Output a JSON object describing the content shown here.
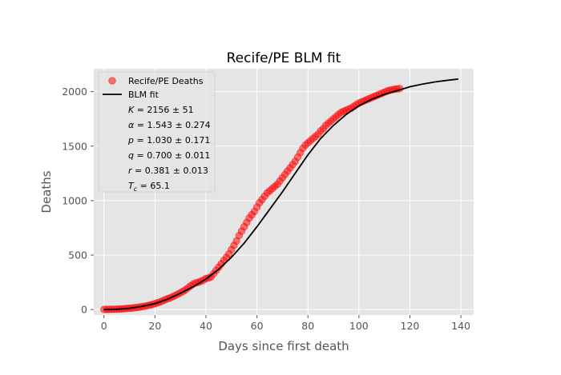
{
  "chart_data": {
    "type": "scatter",
    "title": "Recife/PE BLM fit",
    "xlabel": "Days since first death",
    "ylabel": "Deaths",
    "xlim": [
      -4,
      145
    ],
    "ylim": [
      -50,
      2210
    ],
    "xticks": [
      0,
      20,
      40,
      60,
      80,
      100,
      120,
      140
    ],
    "yticks": [
      0,
      500,
      1000,
      1500,
      2000
    ],
    "grid": true,
    "background": "#e5e5e5",
    "legend_position": "top-left",
    "series": [
      {
        "name": "Recife/PE Deaths",
        "kind": "scatter",
        "color": "#ff0000",
        "x_range": [
          0,
          116
        ],
        "note": "daily cumulative deaths, one point per day",
        "x": [
          0,
          1,
          2,
          3,
          4,
          5,
          6,
          7,
          8,
          9,
          10,
          11,
          12,
          13,
          14,
          15,
          16,
          17,
          18,
          19,
          20,
          21,
          22,
          23,
          24,
          25,
          26,
          27,
          28,
          29,
          30,
          31,
          32,
          33,
          34,
          35,
          36,
          37,
          38,
          39,
          40,
          41,
          42,
          43,
          44,
          45,
          46,
          47,
          48,
          49,
          50,
          51,
          52,
          53,
          54,
          55,
          56,
          57,
          58,
          59,
          60,
          61,
          62,
          63,
          64,
          65,
          66,
          67,
          68,
          69,
          70,
          71,
          72,
          73,
          74,
          75,
          76,
          77,
          78,
          79,
          80,
          81,
          82,
          83,
          84,
          85,
          86,
          87,
          88,
          89,
          90,
          91,
          92,
          93,
          94,
          95,
          96,
          97,
          98,
          99,
          100,
          101,
          102,
          103,
          104,
          105,
          106,
          107,
          108,
          109,
          110,
          111,
          112,
          113,
          114,
          115,
          116
        ],
        "y": [
          1,
          2,
          2,
          3,
          3,
          4,
          5,
          6,
          8,
          10,
          12,
          14,
          17,
          20,
          23,
          27,
          31,
          36,
          41,
          47,
          54,
          62,
          70,
          80,
          91,
          100,
          108,
          118,
          130,
          142,
          155,
          168,
          182,
          200,
          218,
          235,
          245,
          250,
          260,
          270,
          285,
          290,
          300,
          330,
          360,
          390,
          420,
          450,
          480,
          510,
          550,
          590,
          630,
          680,
          720,
          760,
          800,
          840,
          870,
          900,
          940,
          980,
          1010,
          1040,
          1070,
          1090,
          1110,
          1130,
          1150,
          1180,
          1210,
          1240,
          1270,
          1300,
          1330,
          1360,
          1400,
          1440,
          1480,
          1510,
          1530,
          1550,
          1570,
          1590,
          1610,
          1640,
          1660,
          1690,
          1710,
          1730,
          1750,
          1770,
          1790,
          1810,
          1820,
          1830,
          1840,
          1850,
          1865,
          1880,
          1895,
          1905,
          1915,
          1925,
          1935,
          1945,
          1955,
          1965,
          1975,
          1985,
          1995,
          2005,
          2012,
          2018,
          2022,
          2025,
          2028
        ]
      },
      {
        "name": "BLM fit",
        "kind": "line",
        "color": "#000000",
        "x_range": [
          0,
          139
        ],
        "x": [
          0,
          5,
          10,
          15,
          20,
          25,
          30,
          35,
          40,
          45,
          50,
          55,
          60,
          65,
          70,
          75,
          80,
          85,
          90,
          95,
          100,
          105,
          110,
          115,
          120,
          125,
          130,
          135,
          139
        ],
        "y": [
          0,
          3,
          12,
          30,
          55,
          95,
          150,
          210,
          280,
          370,
          480,
          610,
          760,
          920,
          1080,
          1250,
          1420,
          1570,
          1690,
          1790,
          1870,
          1930,
          1975,
          2010,
          2045,
          2070,
          2090,
          2105,
          2115
        ]
      }
    ],
    "annotations": [
      {
        "type": "tex",
        "symbol": "K",
        "text": " = 2156 ± 51"
      },
      {
        "type": "tex",
        "symbol": "α",
        "text": " = 1.543 ± 0.274"
      },
      {
        "type": "tex",
        "symbol": "p",
        "text": " = 1.030 ± 0.171"
      },
      {
        "type": "tex",
        "symbol": "q",
        "text": " = 0.700 ± 0.011"
      },
      {
        "type": "tex",
        "symbol": "r",
        "text": " = 0.381 ± 0.013"
      },
      {
        "type": "tex",
        "symbol": "T",
        "sub": "c",
        "text": " = 65.1"
      }
    ]
  }
}
